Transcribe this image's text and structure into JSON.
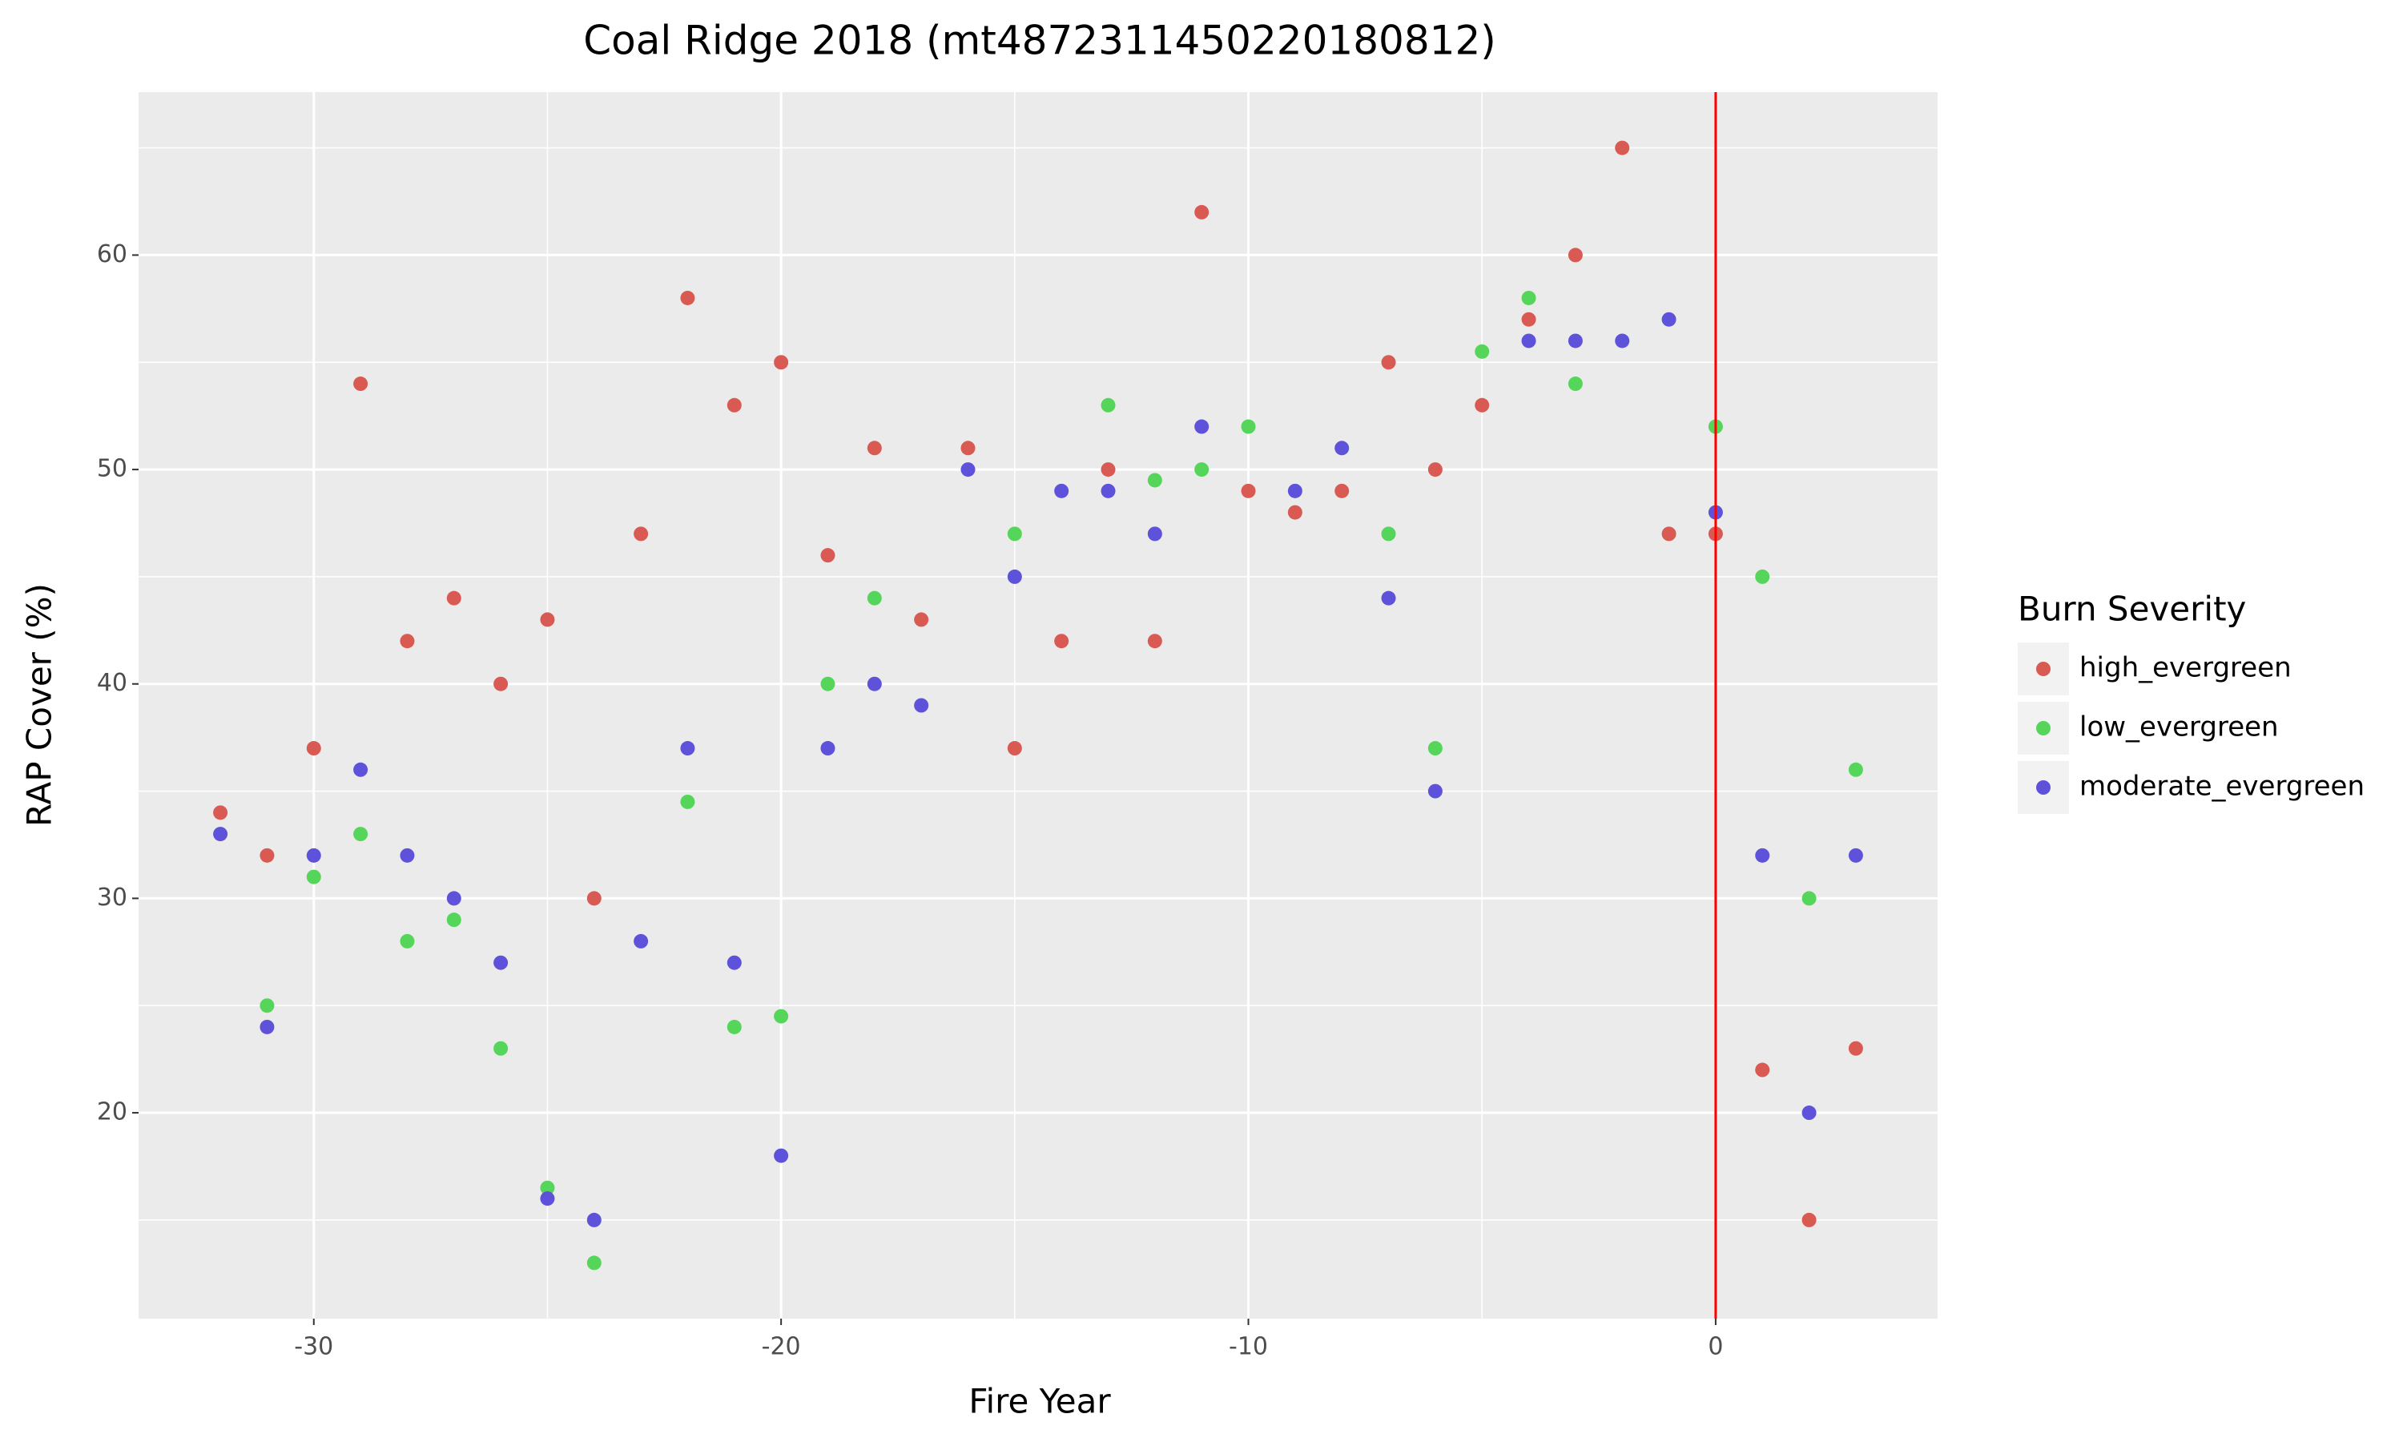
{
  "chart_data": {
    "type": "scatter",
    "title": "Coal Ridge 2018 (mt4872311450220180812)",
    "x_label": "Fire Year",
    "y_label": "RAP Cover (%)",
    "legend_title": "Burn Severity",
    "legend_position": "right",
    "xlim": [
      -33.75,
      4.75
    ],
    "ylim": [
      10.4,
      67.6
    ],
    "xticks": [
      -30,
      -20,
      -10,
      0
    ],
    "yticks": [
      20,
      30,
      40,
      50,
      60
    ],
    "grid": true,
    "vline": {
      "x": 0,
      "color": "#ff0000"
    },
    "series": [
      {
        "name": "high_evergreen",
        "color": "#d95a53",
        "x": [
          -32,
          -31,
          -30,
          -29,
          -28,
          -27,
          -26,
          -25,
          -24,
          -23,
          -22,
          -21,
          -20,
          -19,
          -18,
          -17,
          -16,
          -15,
          -14,
          -13,
          -12,
          -11,
          -10,
          -9,
          -8,
          -7,
          -6,
          -5,
          -4,
          -3,
          -2,
          -1,
          0,
          1,
          2,
          3
        ],
        "values": [
          34,
          32,
          37,
          54,
          42,
          44,
          40,
          43,
          30,
          47,
          58,
          53,
          55,
          46,
          51,
          43,
          51,
          37,
          42,
          50,
          42,
          62,
          49,
          48,
          49,
          55,
          50,
          53,
          57,
          60,
          65,
          47,
          47,
          22,
          15,
          23
        ]
      },
      {
        "name": "low_evergreen",
        "color": "#55d65a",
        "x": [
          -31,
          -30,
          -29,
          -28,
          -27,
          -26,
          -25,
          -24,
          -22,
          -21,
          -20,
          -19,
          -18,
          -15,
          -13,
          -12,
          -11,
          -10,
          -7,
          -6,
          -5,
          -4,
          -3,
          0,
          1,
          2,
          3
        ],
        "values": [
          25,
          31,
          33,
          28,
          29,
          23,
          16.5,
          13,
          34.5,
          24,
          24.5,
          40,
          44,
          47,
          53,
          49.5,
          50,
          52,
          47,
          37,
          55.5,
          58,
          54,
          52,
          45,
          30,
          36
        ]
      },
      {
        "name": "moderate_evergreen",
        "color": "#5d52d9",
        "x": [
          -32,
          -31,
          -30,
          -29,
          -28,
          -27,
          -26,
          -25,
          -24,
          -23,
          -22,
          -21,
          -20,
          -19,
          -18,
          -17,
          -16,
          -15,
          -14,
          -13,
          -12,
          -11,
          -9,
          -8,
          -7,
          -6,
          -4,
          -3,
          -2,
          -1,
          0,
          1,
          2,
          3
        ],
        "values": [
          33,
          24,
          32,
          36,
          32,
          30,
          27,
          16,
          15,
          28,
          37,
          27,
          18,
          37,
          40,
          39,
          50,
          45,
          49,
          49,
          47,
          52,
          49,
          51,
          44,
          35,
          56,
          56,
          56,
          57,
          48,
          32,
          20,
          32
        ]
      }
    ]
  }
}
